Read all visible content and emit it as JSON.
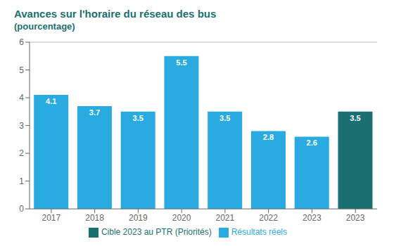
{
  "chart_data": {
    "type": "bar",
    "title": "Avances sur l'horaire du réseau des bus",
    "subtitle": "(pourcentage)",
    "categories": [
      "2017",
      "2018",
      "2019",
      "2020",
      "2021",
      "2022",
      "2023",
      "2023"
    ],
    "series": [
      {
        "name": "Résultats réels",
        "color": "#29ABE2",
        "values": [
          4.1,
          3.7,
          3.5,
          5.5,
          3.5,
          2.8,
          2.6,
          null
        ]
      },
      {
        "name": "Cible 2023 au PTR (Priorités)",
        "color": "#1A7070",
        "values": [
          null,
          null,
          null,
          null,
          null,
          null,
          null,
          3.5
        ]
      }
    ],
    "ylim": [
      0,
      6
    ],
    "yticks": [
      0,
      1,
      2,
      3,
      4,
      5,
      6
    ],
    "data_labels": true,
    "grid": false,
    "legend": "bottom"
  }
}
